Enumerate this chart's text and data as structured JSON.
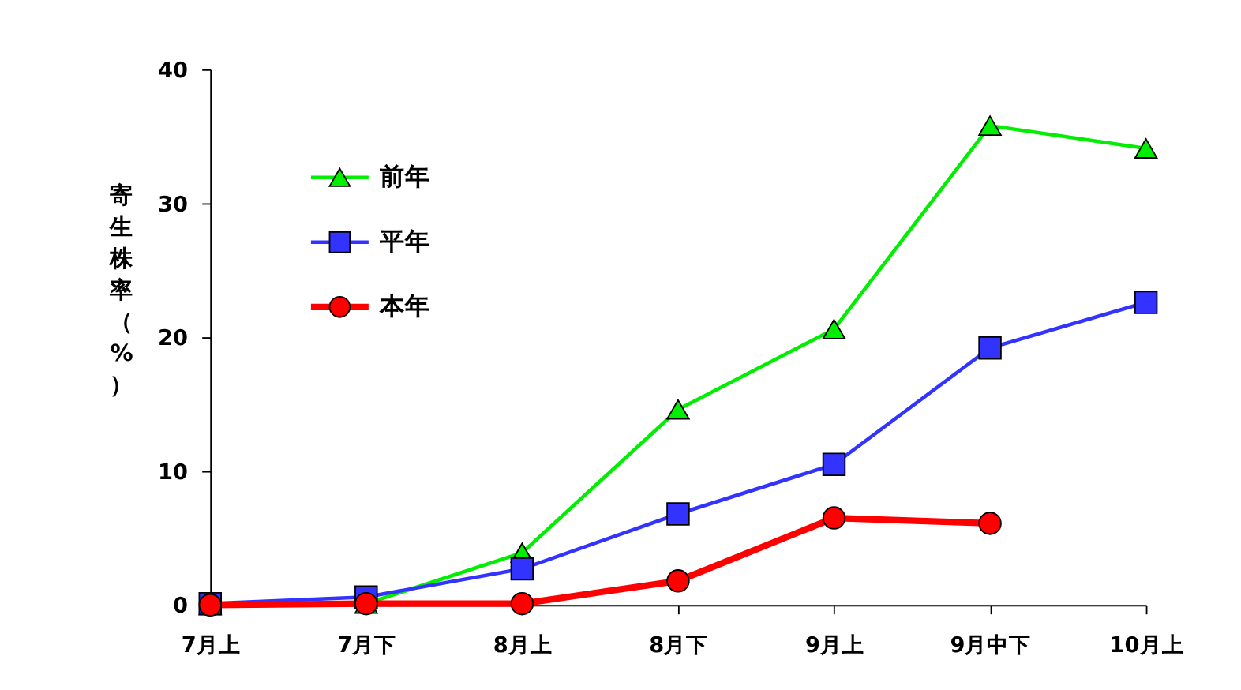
{
  "chart_data": {
    "type": "line",
    "ylabel": "寄生株率（%）",
    "categories": [
      "7月上",
      "7月下",
      "8月上",
      "8月下",
      "9月上",
      "9月中下",
      "10月上"
    ],
    "series": [
      {
        "name": "前年",
        "color": "#00ee00",
        "marker": "triangle",
        "values": [
          0,
          0.1,
          3.9,
          14.6,
          20.6,
          35.8,
          34.1
        ]
      },
      {
        "name": "平年",
        "color": "#3333ff",
        "marker": "square",
        "values": [
          0.1,
          0.6,
          2.7,
          6.8,
          10.5,
          19.2,
          22.6
        ]
      },
      {
        "name": "本年",
        "color": "#ff0000",
        "marker": "circle",
        "values": [
          0,
          0.1,
          0.1,
          1.8,
          6.5,
          6.1,
          null
        ]
      }
    ],
    "ylim": [
      0,
      40
    ],
    "yticks": [
      0,
      10,
      20,
      30,
      40
    ],
    "grid": false,
    "legend": "top left",
    "line_style": "solid"
  }
}
